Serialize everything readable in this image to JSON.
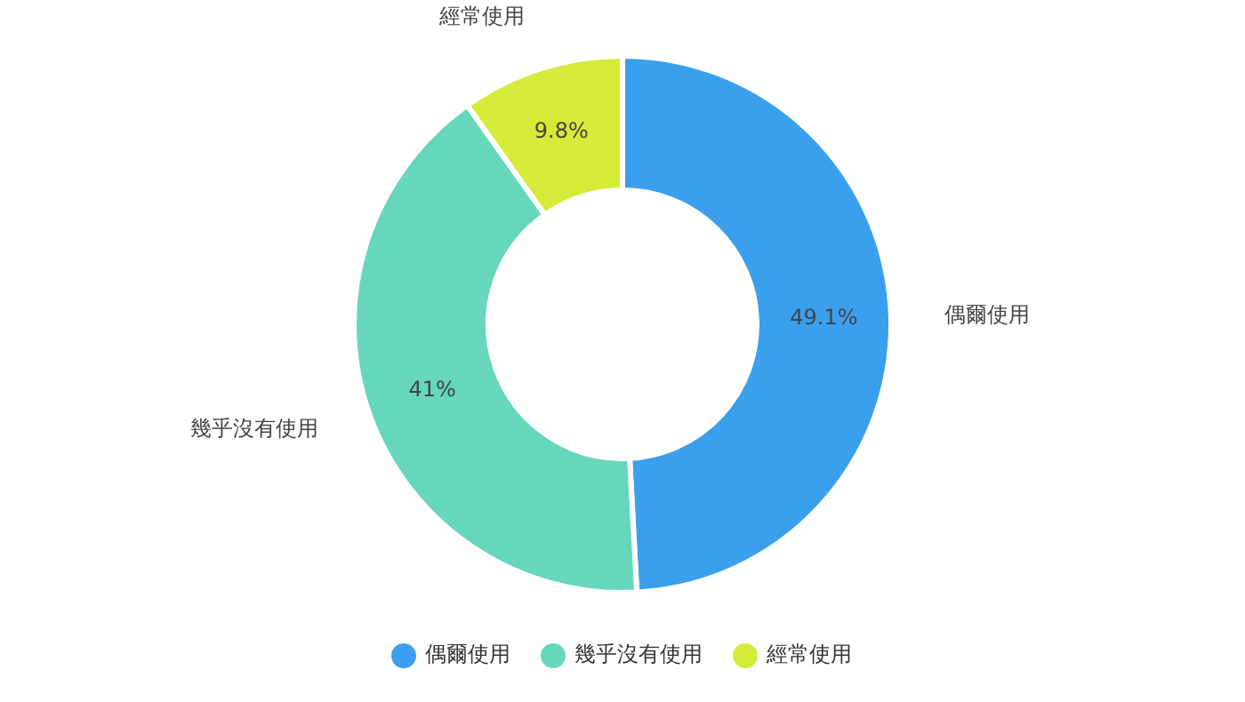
{
  "chart_data": {
    "type": "donut",
    "categories": [
      "偶爾使用",
      "幾乎沒有使用",
      "經常使用"
    ],
    "values": [
      49.1,
      41,
      9.8
    ],
    "value_labels": [
      "49.1%",
      "41%",
      "9.8%"
    ],
    "colors": [
      "#3aa0ee",
      "#66d7bc",
      "#d4eb3a"
    ],
    "legend": "bottom"
  }
}
